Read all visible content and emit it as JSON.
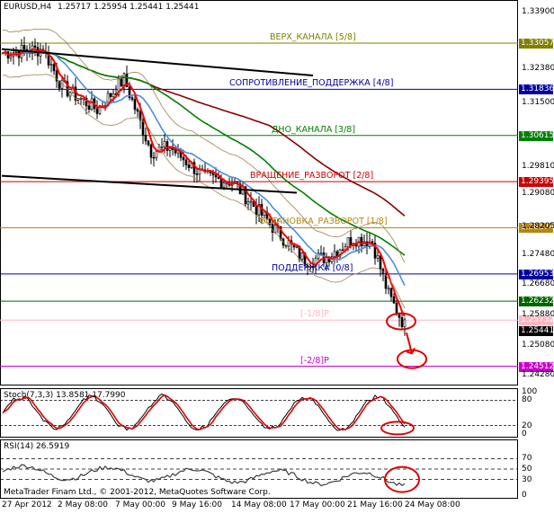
{
  "header": {
    "symbol": "EURUSD,H4",
    "ohlc": "1.25717 1.25954 1.25441 1.25441"
  },
  "levels": [
    {
      "label": "ВЕРХ_КАНАЛА [5/8]",
      "value": "1.33057",
      "color": "#808000"
    },
    {
      "label": "СОПРОТИВЛЕНИЕ_ПОДДЕРЖКА [4/8]",
      "value": "1.31836",
      "color": "#0000a0"
    },
    {
      "label": "ДНО_КАНАЛА [3/8]",
      "value": "1.30615",
      "color": "#008000"
    },
    {
      "label": "ВРАЩЕНИЕ_РАЗВОРОТ [2/8]",
      "value": "1.29395",
      "color": "#cc0000"
    },
    {
      "label": "ОСТАНОВКА_РАЗВОРОТ [1/8]",
      "value": "1.28174",
      "color": "#b8860b"
    },
    {
      "label": "ПОДДЕРЖКА [0/8]",
      "value": "1.26953",
      "color": "#0000a0"
    },
    {
      "label": "",
      "value": "1.26232",
      "color": "#006400"
    },
    {
      "label": "[-1/8]P",
      "value": "1.25732",
      "color": "#ffb6c1"
    },
    {
      "label": "[-2/8]P",
      "value": "1.24512",
      "color": "#cc00cc"
    }
  ],
  "price_axis": {
    "ticks": [
      "1.33900",
      "1.32380",
      "1.31500",
      "1.29810",
      "1.29080",
      "1.28205",
      "1.27480",
      "1.26680",
      "1.25880",
      "1.25080",
      "1.24280"
    ],
    "current": "1.25441",
    "current_color": "#000000"
  },
  "stochastic": {
    "title": "Stoch(7,3,3) 13.8581 17.7990",
    "levels": [
      "100",
      "80",
      "20",
      "0"
    ]
  },
  "rsi": {
    "title": "RSI(14) 26.5919",
    "levels": [
      "70",
      "50",
      "30",
      "0"
    ]
  },
  "copyright": "MetaTrader Finam Ltd., © 2001-2012, MetaQuotes Software Corp.",
  "dates": [
    "27 Apr 2012",
    "2 May 08:00",
    "7 May 00:00",
    "9 May 16:00",
    "14 May 08:00",
    "17 May 00:00",
    "21 May 16:00",
    "24 May 08:00"
  ],
  "colors": {
    "candles": "#000000",
    "ma_fast": "#ff0000",
    "ma_mid": "#4a90d9",
    "ma_slow": "#008000",
    "ma_long": "#8b0000",
    "bands": "#a08050",
    "ellipse": "#e00000"
  }
}
